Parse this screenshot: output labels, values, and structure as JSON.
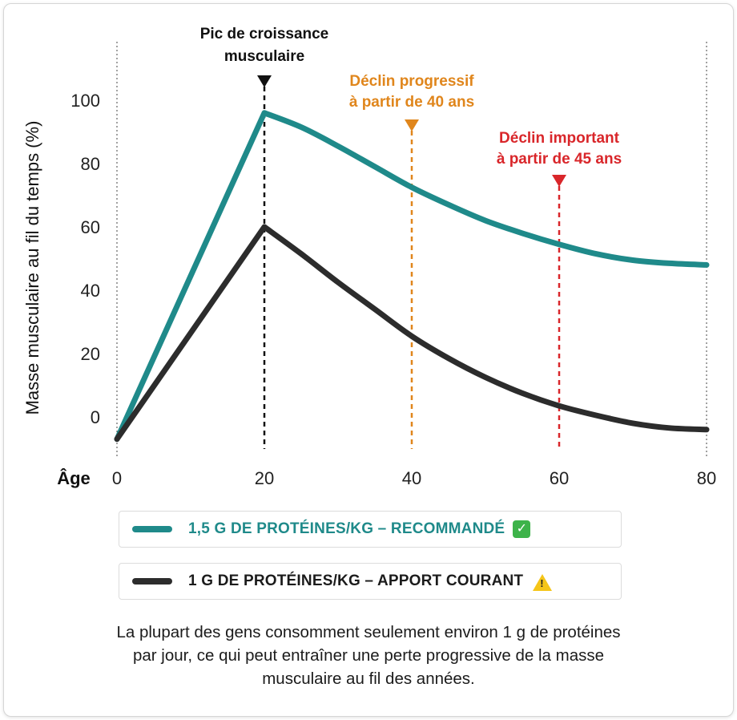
{
  "chart_data": {
    "type": "line",
    "ylabel": "Masse musculaire au fil du temps (%)",
    "xlabel": "Âge",
    "x_ticks": [
      0,
      20,
      40,
      60,
      80
    ],
    "y_ticks": [
      0,
      20,
      40,
      60,
      80,
      100
    ],
    "xlim": [
      0,
      80
    ],
    "ylim": [
      -7,
      103
    ],
    "grid": false,
    "series": [
      {
        "name": "1,5 G DE PROTÉINES/KG – RECOMMANDÉ",
        "color": "#1f8a8a",
        "x": [
          0,
          20,
          25,
          30,
          35,
          40,
          45,
          50,
          55,
          60,
          65,
          70,
          75,
          80
        ],
        "y": [
          -7,
          96,
          91.5,
          85.5,
          79,
          72.5,
          67,
          62,
          58,
          54.5,
          51.5,
          49.5,
          48.5,
          48
        ]
      },
      {
        "name": "1 G DE PROTÉINES/KG – APPORT COURANT",
        "color": "#2c2c2c",
        "x": [
          0,
          20,
          25,
          30,
          35,
          40,
          45,
          50,
          55,
          60,
          65,
          70,
          75,
          80
        ],
        "y": [
          -7,
          60,
          51.5,
          42.5,
          34,
          25.5,
          18.5,
          12.5,
          7.5,
          3.5,
          0.5,
          -2,
          -3.5,
          -4
        ]
      }
    ],
    "annotations": [
      {
        "x": 20,
        "lines": [
          "Pic de croissance",
          "musculaire"
        ],
        "color": "#111111"
      },
      {
        "x": 40,
        "lines": [
          "Déclin progressif",
          "à partir de 40 ans"
        ],
        "color": "#e0861c"
      },
      {
        "x": 60,
        "lines": [
          "Déclin important",
          "à partir de 45 ans"
        ],
        "color": "#d9262a"
      }
    ]
  },
  "legend": {
    "recommended": {
      "label": "1,5 G DE PROTÉINES/KG – RECOMMANDÉ",
      "badge": "✓",
      "color": "#1f8a8a"
    },
    "current": {
      "label": "1 G DE PROTÉINES/KG – APPORT COURANT",
      "badge": "!",
      "color": "#2c2c2c"
    }
  },
  "footnote": {
    "line1": "La plupart des gens consomment seulement environ 1 g de protéines",
    "line2": "par jour, ce qui peut entraîner une perte progressive de la masse",
    "line3": "musculaire au fil des années."
  }
}
